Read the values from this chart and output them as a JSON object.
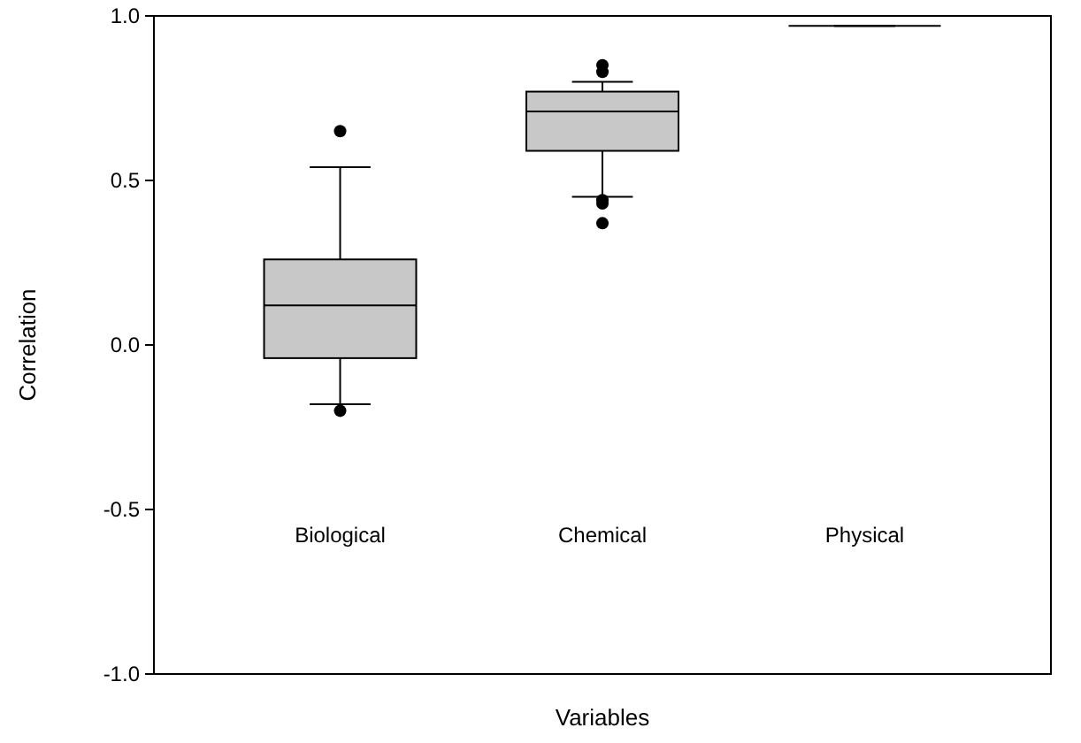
{
  "chart_data": {
    "type": "box",
    "xlabel": "Variables",
    "ylabel": "Correlation",
    "categories": [
      "Biological",
      "Chemical",
      "Physical"
    ],
    "boxes": [
      {
        "low": -0.18,
        "q1": -0.04,
        "median": 0.12,
        "q3": 0.26,
        "high": 0.54,
        "outliers": [
          0.65,
          -0.2
        ]
      },
      {
        "low": 0.45,
        "q1": 0.59,
        "median": 0.71,
        "q3": 0.77,
        "high": 0.8,
        "outliers": [
          0.85,
          0.83,
          0.44,
          0.43,
          0.37
        ]
      },
      {
        "low": 0.97,
        "q1": 0.97,
        "median": 0.97,
        "q3": 0.97,
        "high": 0.97
      }
    ],
    "colors": [
      "#c8c8c8",
      "#c8c8c8",
      "#000000"
    ],
    "ylim": [
      -1,
      1
    ],
    "yticks": [
      {
        "value": -1,
        "label": "-1.0"
      },
      {
        "value": -0.5,
        "label": "-0.5"
      },
      {
        "value": 0,
        "label": "0.0"
      },
      {
        "value": 0.5,
        "label": "0.5"
      },
      {
        "value": 1,
        "label": "1.0"
      }
    ],
    "grid": false
  }
}
